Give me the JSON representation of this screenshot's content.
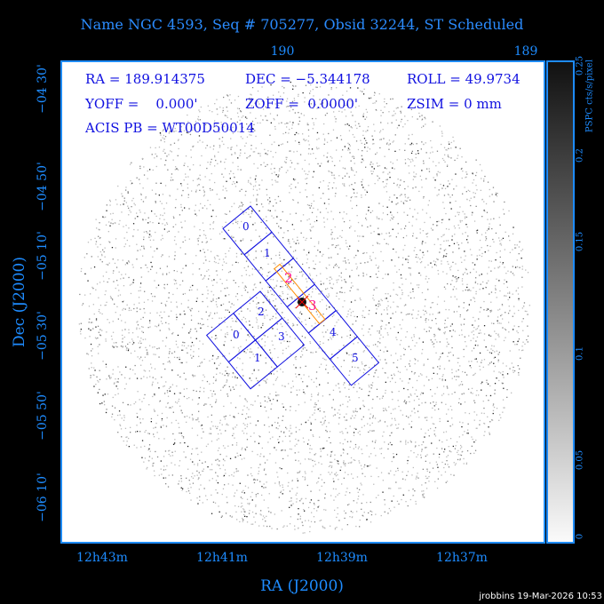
{
  "title": "Name NGC 4593, Seq # 705277, Obsid 32244, ST Scheduled",
  "top_axis": {
    "ticks": [
      "190",
      "189"
    ]
  },
  "bottom_axis": {
    "ticks": [
      "12h43m",
      "12h41m",
      "12h39m",
      "12h37m"
    ],
    "label": "RA (J2000)"
  },
  "left_axis": {
    "ticks": [
      "−04 30'",
      "−04 50'",
      "−05 10'",
      "−05 30'",
      "−05 50'",
      "−06 10'"
    ],
    "label": "Dec (J2000)"
  },
  "info": {
    "ra": "RA = 189.914375",
    "dec": "DEC = −5.344178",
    "roll": "ROLL = 49.9734",
    "yoff": "YOFF =    0.000'",
    "zoff": "ZOFF =  0.0000'",
    "zsim": "ZSIM = 0 mm",
    "acis_pb": "ACIS PB = WT00D50014"
  },
  "colorbar": {
    "label": "PSPC cts/s/pixel",
    "ticks": [
      "0",
      "0.05",
      "0.1",
      "0.15",
      "0.2",
      "0.25"
    ]
  },
  "acis_s_chips": [
    "0",
    "1",
    "2",
    "3",
    "4",
    "5"
  ],
  "acis_i_chips": [
    "0",
    "1",
    "2",
    "3"
  ],
  "footer": "jrobbins 19-Mar-2026 10:53",
  "colors": {
    "axis": "#1e8cff",
    "chips": "#1010e0",
    "slit": "#ff8c00",
    "highlight": "#ff1493"
  }
}
